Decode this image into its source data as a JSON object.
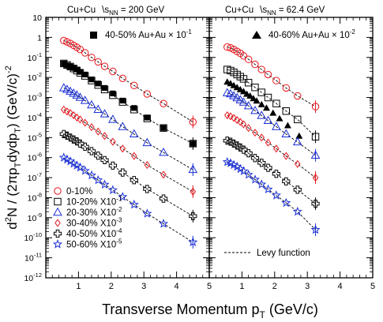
{
  "chart_data": {
    "type": "scatter",
    "ylabel_parts": {
      "a": "d",
      "b": "2",
      "c": "N / (2πp",
      "d": "T",
      "e": "dydp",
      "f": "T",
      "g": ") (GeV/c)",
      "h": "-2"
    },
    "xlabel_parts": {
      "a": "Transverse Momentum p",
      "b": "T",
      "c": " (GeV/c)"
    },
    "y_scale": "log",
    "ylim": [
      1e-12,
      10
    ],
    "y_ticks": [
      {
        "v": 10,
        "m": "10",
        "e": ""
      },
      {
        "v": 1,
        "m": "1",
        "e": ""
      },
      {
        "v": 0.1,
        "m": "10",
        "e": "-1"
      },
      {
        "v": 0.01,
        "m": "10",
        "e": "-2"
      },
      {
        "v": 0.001,
        "m": "10",
        "e": "-3"
      },
      {
        "v": 0.0001,
        "m": "10",
        "e": "-4"
      },
      {
        "v": 1e-05,
        "m": "10",
        "e": "-5"
      },
      {
        "v": 1e-06,
        "m": "10",
        "e": "-6"
      },
      {
        "v": 1e-07,
        "m": "10",
        "e": "-7"
      },
      {
        "v": 1e-08,
        "m": "10",
        "e": "-8"
      },
      {
        "v": 1e-09,
        "m": "10",
        "e": "-9"
      },
      {
        "v": 1e-10,
        "m": "10",
        "e": "-10"
      },
      {
        "v": 1e-11,
        "m": "10",
        "e": "-11"
      },
      {
        "v": 1e-12,
        "m": "10",
        "e": "-12"
      }
    ],
    "colors": {
      "red": "#e8141b",
      "black": "#000000",
      "blue": "#1a2fd6",
      "gray": "#777777"
    },
    "series_style": [
      {
        "marker": "circle",
        "color": "#e8141b"
      },
      {
        "marker": "square",
        "color": "#000000"
      },
      {
        "marker": "triangle",
        "color": "#1a2fd6"
      },
      {
        "marker": "diamond",
        "color": "#e8141b"
      },
      {
        "marker": "cross",
        "color": "#000000"
      },
      {
        "marker": "star",
        "color": "#1a2fd6"
      }
    ],
    "legend": {
      "entries": [
        {
          "m": "0-10%",
          "e": ""
        },
        {
          "m": "10-20% X10",
          "e": "-1"
        },
        {
          "m": "20-30% X10",
          "e": "-2"
        },
        {
          "m": "30-40% X10",
          "e": "-3"
        },
        {
          "m": "40-50% X10",
          "e": "-4"
        },
        {
          "m": "50-60% X10",
          "e": "-5"
        }
      ],
      "fit": "Levy function"
    },
    "panels": [
      {
        "title_a": "Cu+Cu",
        "title_b": "s",
        "title_c": "NN",
        "title_d": " = 200 GeV",
        "xlim": [
          0,
          5
        ],
        "x_ticks": [
          "1",
          "2",
          "3",
          "4",
          "5"
        ],
        "overlay_a": "40-50% Au+Au",
        "overlay_b": "× 10",
        "overlay_c": "-1",
        "overlay_marker": "square-filled",
        "overlay": {
          "x": [
            0.55,
            0.65,
            0.75,
            0.85,
            0.95,
            1.05,
            1.2,
            1.4,
            1.6,
            1.8,
            2.05,
            2.35,
            2.7,
            3.1,
            3.6,
            4.5
          ],
          "y": [
            0.05,
            0.04,
            0.035,
            0.03,
            0.025,
            0.019,
            0.014,
            0.008,
            0.005,
            0.003,
            0.0016,
            0.0007,
            0.0003,
            0.0001,
            3e-05,
            5e-06
          ]
        },
        "series": [
          {
            "x": [
              0.55,
              0.65,
              0.75,
              0.85,
              0.95,
              1.05,
              1.2,
              1.4,
              1.6,
              1.8,
              2.05,
              2.35,
              2.7,
              3.1,
              3.6,
              4.5
            ],
            "y": [
              0.7,
              0.6,
              0.5,
              0.4,
              0.32,
              0.25,
              0.17,
              0.1,
              0.06,
              0.036,
              0.02,
              0.009,
              0.004,
              0.0015,
              0.0005,
              6e-05
            ]
          },
          {
            "x": [
              0.55,
              0.65,
              0.75,
              0.85,
              0.95,
              1.05,
              1.2,
              1.4,
              1.6,
              1.8,
              2.05,
              2.35,
              2.7,
              3.1,
              3.6,
              4.5
            ],
            "y": [
              0.05,
              0.042,
              0.035,
              0.028,
              0.022,
              0.017,
              0.012,
              0.007,
              0.0042,
              0.0025,
              0.0013,
              0.0006,
              0.00025,
              9e-05,
              3e-05,
              5e-06
            ]
          },
          {
            "x": [
              0.55,
              0.65,
              0.75,
              0.85,
              0.95,
              1.05,
              1.2,
              1.4,
              1.6,
              1.8,
              2.05,
              2.35,
              2.7,
              3.1,
              3.6,
              4.5
            ],
            "y": [
              0.003,
              0.0025,
              0.002,
              0.0016,
              0.0013,
              0.001,
              0.0007,
              0.00042,
              0.00025,
              0.00015,
              8e-05,
              3.5e-05,
              1.5e-05,
              5.5e-06,
              1.8e-06,
              2.5e-07
            ]
          },
          {
            "x": [
              0.55,
              0.65,
              0.75,
              0.85,
              0.95,
              1.05,
              1.2,
              1.4,
              1.6,
              1.8,
              2.05,
              2.35,
              2.7,
              3.1,
              3.6,
              4.5
            ],
            "y": [
              0.00025,
              0.0002,
              0.00017,
              0.00013,
              0.0001,
              8e-05,
              5.5e-05,
              3.3e-05,
              2e-05,
              1.2e-05,
              6.2e-06,
              2.8e-06,
              1.2e-06,
              4.3e-07,
              1.4e-07,
              2e-08
            ]
          },
          {
            "x": [
              0.55,
              0.65,
              0.75,
              0.85,
              0.95,
              1.05,
              1.2,
              1.4,
              1.6,
              1.8,
              2.05,
              2.35,
              2.7,
              3.1,
              3.6,
              4.5
            ],
            "y": [
              1.5e-05,
              1.25e-05,
              1e-05,
              8e-06,
              6.5e-06,
              5e-06,
              3.5e-06,
              2.1e-06,
              1.25e-06,
              7.5e-07,
              4e-07,
              1.8e-07,
              7.5e-08,
              2.7e-08,
              9e-09,
              1.2e-09
            ]
          },
          {
            "x": [
              0.55,
              0.65,
              0.75,
              0.85,
              0.95,
              1.05,
              1.2,
              1.4,
              1.6,
              1.8,
              2.05,
              2.35,
              2.7,
              3.1,
              3.6,
              4.5
            ],
            "y": [
              1e-06,
              8e-07,
              6.5e-07,
              5e-07,
              4e-07,
              3.2e-07,
              2.2e-07,
              1.3e-07,
              7.5e-08,
              4.5e-08,
              2.4e-08,
              1.1e-08,
              4.5e-09,
              1.6e-09,
              5e-10,
              6e-11
            ]
          }
        ]
      },
      {
        "title_a": "Cu+Cu",
        "title_b": "s",
        "title_c": "NN",
        "title_d": " = 62.4 GeV",
        "xlim": [
          0,
          5
        ],
        "x_ticks": [
          "1",
          "2",
          "3",
          "4",
          "5"
        ],
        "overlay_a": "40-60% Au+Au",
        "overlay_b": "× 10",
        "overlay_c": "-2",
        "overlay_marker": "triangle-filled",
        "overlay": {
          "x": [
            0.55,
            0.65,
            0.75,
            0.85,
            0.95,
            1.05,
            1.15,
            1.25,
            1.35,
            1.45,
            1.6,
            1.75,
            1.95,
            2.15,
            2.4,
            2.75
          ],
          "y": [
            0.006,
            0.005,
            0.004,
            0.0032,
            0.0025,
            0.002,
            0.0015,
            0.0012,
            0.0009,
            0.00068,
            0.00045,
            0.0003,
            0.00017,
            9e-05,
            4e-05,
            1.2e-05
          ]
        },
        "series": [
          {
            "x": [
              0.55,
              0.65,
              0.75,
              0.85,
              0.95,
              1.05,
              1.2,
              1.4,
              1.6,
              1.8,
              2.05,
              2.35,
              2.7,
              3.25
            ],
            "y": [
              0.33,
              0.3,
              0.25,
              0.2,
              0.16,
              0.12,
              0.08,
              0.045,
              0.025,
              0.014,
              0.007,
              0.003,
              0.0012,
              0.00035
            ]
          },
          {
            "x": [
              0.55,
              0.65,
              0.75,
              0.85,
              0.95,
              1.05,
              1.2,
              1.4,
              1.6,
              1.8,
              2.05,
              2.35,
              2.7,
              3.25
            ],
            "y": [
              0.025,
              0.022,
              0.018,
              0.014,
              0.011,
              0.0085,
              0.0055,
              0.0032,
              0.0018,
              0.001,
              0.0005,
              0.00021,
              8e-05,
              1.1e-05
            ]
          },
          {
            "x": [
              0.55,
              0.65,
              0.75,
              0.85,
              0.95,
              1.05,
              1.2,
              1.4,
              1.6,
              1.8,
              2.05,
              2.35,
              2.7,
              3.25
            ],
            "y": [
              0.0017,
              0.0015,
              0.0012,
              0.00095,
              0.00075,
              0.00058,
              0.00038,
              0.00022,
              0.000125,
              7e-05,
              3.5e-05,
              1.5e-05,
              6e-06,
              1.3e-06
            ]
          },
          {
            "x": [
              0.55,
              0.65,
              0.75,
              0.85,
              0.95,
              1.05,
              1.2,
              1.4,
              1.6,
              1.8,
              2.05,
              2.35,
              2.7,
              3.25
            ],
            "y": [
              0.00013,
              0.000115,
              9.5e-05,
              7.5e-05,
              6e-05,
              4.6e-05,
              3e-05,
              1.75e-05,
              1e-05,
              5.6e-06,
              2.8e-06,
              1.2e-06,
              4.8e-07,
              1e-07
            ]
          },
          {
            "x": [
              0.55,
              0.65,
              0.75,
              0.85,
              0.95,
              1.05,
              1.2,
              1.4,
              1.6,
              1.8,
              2.05,
              2.35,
              2.7,
              3.25
            ],
            "y": [
              7e-06,
              6.2e-06,
              5e-06,
              4e-06,
              3.2e-06,
              2.5e-06,
              1.65e-06,
              9.5e-07,
              5.5e-07,
              3.1e-07,
              1.55e-07,
              6.5e-08,
              2.5e-08,
              5e-09
            ]
          },
          {
            "x": [
              0.55,
              0.65,
              0.75,
              0.85,
              0.95,
              1.05,
              1.2,
              1.4,
              1.6,
              1.8,
              2.05,
              2.35,
              2.7,
              3.25
            ],
            "y": [
              6e-07,
              5.3e-07,
              4.3e-07,
              3.5e-07,
              2.7e-07,
              2.1e-07,
              1.4e-07,
              8e-08,
              4.6e-08,
              2.6e-08,
              1.3e-08,
              5.5e-09,
              2e-09,
              2.5e-10
            ]
          }
        ]
      }
    ]
  }
}
